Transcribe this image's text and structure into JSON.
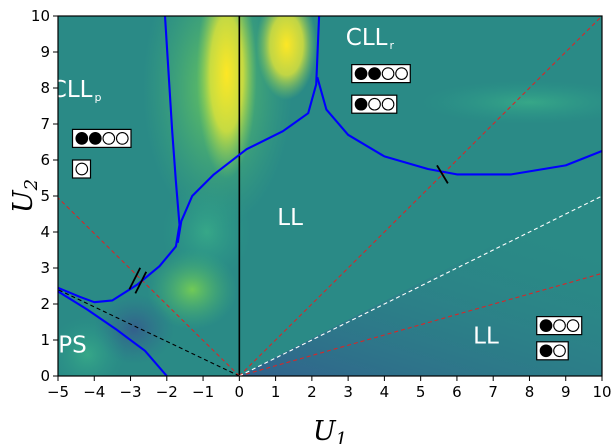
{
  "chart_data": {
    "type": "heatmap",
    "xlabel": "U",
    "xlabel_sub": "1",
    "ylabel": "U",
    "ylabel_sub": "2",
    "xlim": [
      -5,
      10
    ],
    "ylim": [
      0,
      10
    ],
    "x_ticks": [
      -5,
      -4,
      -3,
      -2,
      -1,
      0,
      1,
      2,
      3,
      4,
      5,
      6,
      7,
      8,
      9,
      10
    ],
    "x_tick_labels": [
      "−5",
      "−4",
      "−3",
      "−2",
      "−1",
      "0",
      "1",
      "2",
      "3",
      "4",
      "5",
      "6",
      "7",
      "8",
      "9",
      "10"
    ],
    "y_ticks": [
      0,
      1,
      2,
      3,
      4,
      5,
      6,
      7,
      8,
      9,
      10
    ],
    "y_tick_labels": [
      "0",
      "1",
      "2",
      "3",
      "4",
      "5",
      "6",
      "7",
      "8",
      "9",
      "10"
    ],
    "colormap": [
      "#440154",
      "#3b528b",
      "#21918c",
      "#5ec962",
      "#fde725"
    ],
    "background_color": "#2a8a86",
    "regions": [
      {
        "label": "CLL",
        "sub": "p",
        "x": -4.5,
        "y": 7.75
      },
      {
        "label": "CLL",
        "sub": "r",
        "x": 3.6,
        "y": 9.2
      },
      {
        "label": "LL",
        "sub": "",
        "x": 1.4,
        "y": 4.2
      },
      {
        "label": "LL",
        "sub": "",
        "x": 6.8,
        "y": 0.9
      },
      {
        "label": "PS",
        "sub": "",
        "x": -4.6,
        "y": 0.65
      }
    ],
    "phase_boundaries": [
      {
        "name": "upper-left",
        "color": "#0000ff",
        "points": [
          [
            -2.05,
            10
          ],
          [
            -1.95,
            8.4
          ],
          [
            -1.85,
            6.8
          ],
          [
            -1.75,
            5.4
          ],
          [
            -1.65,
            4.2
          ],
          [
            -1.75,
            3.6
          ],
          [
            -2.2,
            3.05
          ],
          [
            -2.8,
            2.55
          ],
          [
            -3.5,
            2.1
          ],
          [
            -4.0,
            2.05
          ],
          [
            -4.4,
            2.2
          ],
          [
            -5,
            2.45
          ]
        ]
      },
      {
        "name": "central",
        "color": "#0000ff",
        "points": [
          [
            -1.7,
            3.7
          ],
          [
            -1.6,
            4.3
          ],
          [
            -1.3,
            5.0
          ],
          [
            -0.7,
            5.6
          ],
          [
            0.2,
            6.3
          ],
          [
            1.2,
            6.8
          ],
          [
            1.9,
            7.3
          ],
          [
            2.12,
            8.1
          ],
          [
            2.2,
            10
          ]
        ]
      },
      {
        "name": "right",
        "color": "#0000ff",
        "points": [
          [
            2.15,
            8.3
          ],
          [
            2.4,
            7.4
          ],
          [
            3.0,
            6.7
          ],
          [
            4.0,
            6.1
          ],
          [
            5.2,
            5.75
          ],
          [
            6.0,
            5.6
          ],
          [
            7.5,
            5.6
          ],
          [
            9.0,
            5.85
          ],
          [
            10,
            6.25
          ]
        ]
      },
      {
        "name": "lower-left",
        "color": "#0000ff",
        "points": [
          [
            -5,
            2.35
          ],
          [
            -4.2,
            1.85
          ],
          [
            -3.4,
            1.3
          ],
          [
            -2.6,
            0.7
          ],
          [
            -2.0,
            0
          ]
        ]
      }
    ],
    "reference_lines": [
      {
        "name": "vertical-axis",
        "color": "#000000",
        "style": "solid",
        "points": [
          [
            0,
            0
          ],
          [
            0,
            10
          ]
        ]
      },
      {
        "name": "red-diagonal-upper-right",
        "color": "#d62728",
        "style": "dashed",
        "points": [
          [
            0,
            0
          ],
          [
            10,
            10
          ]
        ]
      },
      {
        "name": "red-diagonal-lower-right",
        "color": "#d62728",
        "style": "dashed",
        "points": [
          [
            0,
            0
          ],
          [
            10,
            2.85
          ]
        ]
      },
      {
        "name": "red-diagonal-upper-left",
        "color": "#d62728",
        "style": "dashed",
        "points": [
          [
            0,
            0
          ],
          [
            -5,
            4.95
          ]
        ]
      },
      {
        "name": "white-diagonal",
        "color": "#ffffff",
        "style": "dashed",
        "points": [
          [
            0,
            0
          ],
          [
            10,
            5
          ]
        ]
      },
      {
        "name": "black-diagonal-left",
        "color": "#000000",
        "style": "dashed",
        "points": [
          [
            0,
            0
          ],
          [
            -5,
            2.4
          ]
        ]
      }
    ],
    "tick_marks": [
      {
        "name": "tick-double-left",
        "points": [
          [
            -2.65,
            2.95
          ],
          [
            -2.95,
            2.35
          ]
        ],
        "double": true
      },
      {
        "name": "tick-right",
        "points": [
          [
            5.45,
            5.85
          ],
          [
            5.75,
            5.35
          ]
        ],
        "double": false
      }
    ],
    "occupancy_insets": [
      {
        "name": "inset-cllp-top",
        "x": -4.6,
        "y": 6.6,
        "dots": [
          1,
          1,
          0,
          0
        ]
      },
      {
        "name": "inset-cllp-bottom",
        "x": -4.6,
        "y": 5.75,
        "dots": [
          0
        ]
      },
      {
        "name": "inset-cllr-top",
        "x": 3.1,
        "y": 8.4,
        "dots": [
          1,
          1,
          0,
          0
        ]
      },
      {
        "name": "inset-cllr-bottom",
        "x": 3.1,
        "y": 7.55,
        "dots": [
          1,
          0,
          0
        ]
      },
      {
        "name": "inset-ll-top",
        "x": 8.2,
        "y": 1.4,
        "dots": [
          1,
          0,
          0
        ]
      },
      {
        "name": "inset-ll-bottom",
        "x": 8.2,
        "y": 0.7,
        "dots": [
          1,
          0
        ]
      }
    ]
  }
}
